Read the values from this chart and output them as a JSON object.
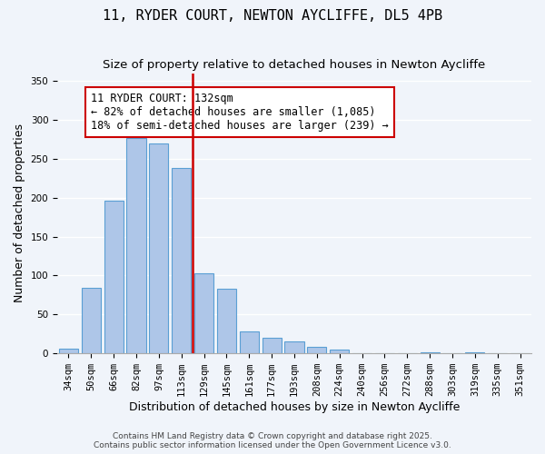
{
  "title": "11, RYDER COURT, NEWTON AYCLIFFE, DL5 4PB",
  "subtitle": "Size of property relative to detached houses in Newton Aycliffe",
  "xlabel": "Distribution of detached houses by size in Newton Aycliffe",
  "ylabel": "Number of detached properties",
  "bar_labels": [
    "34sqm",
    "50sqm",
    "66sqm",
    "82sqm",
    "97sqm",
    "113sqm",
    "129sqm",
    "145sqm",
    "161sqm",
    "177sqm",
    "193sqm",
    "208sqm",
    "224sqm",
    "240sqm",
    "256sqm",
    "272sqm",
    "288sqm",
    "303sqm",
    "319sqm",
    "335sqm",
    "351sqm"
  ],
  "bar_values": [
    6,
    84,
    196,
    277,
    270,
    238,
    103,
    83,
    28,
    20,
    16,
    8,
    5,
    0,
    0,
    0,
    1,
    0,
    1,
    0,
    0
  ],
  "bar_color": "#aec6e8",
  "bar_edge_color": "#5a9fd4",
  "vline_x_index": 6,
  "vline_color": "#cc0000",
  "annotation_title": "11 RYDER COURT: 132sqm",
  "annotation_line1": "← 82% of detached houses are smaller (1,085)",
  "annotation_line2": "18% of semi-detached houses are larger (239) →",
  "annotation_box_color": "#ffffff",
  "annotation_border_color": "#cc0000",
  "ylim": [
    0,
    360
  ],
  "yticks": [
    0,
    50,
    100,
    150,
    200,
    250,
    300,
    350
  ],
  "footer_line1": "Contains HM Land Registry data © Crown copyright and database right 2025.",
  "footer_line2": "Contains public sector information licensed under the Open Government Licence v3.0.",
  "background_color": "#f0f4fa",
  "grid_color": "#ffffff",
  "title_fontsize": 11,
  "subtitle_fontsize": 9.5,
  "axis_label_fontsize": 9,
  "tick_fontsize": 7.5,
  "annotation_fontsize": 8.5,
  "footer_fontsize": 6.5
}
